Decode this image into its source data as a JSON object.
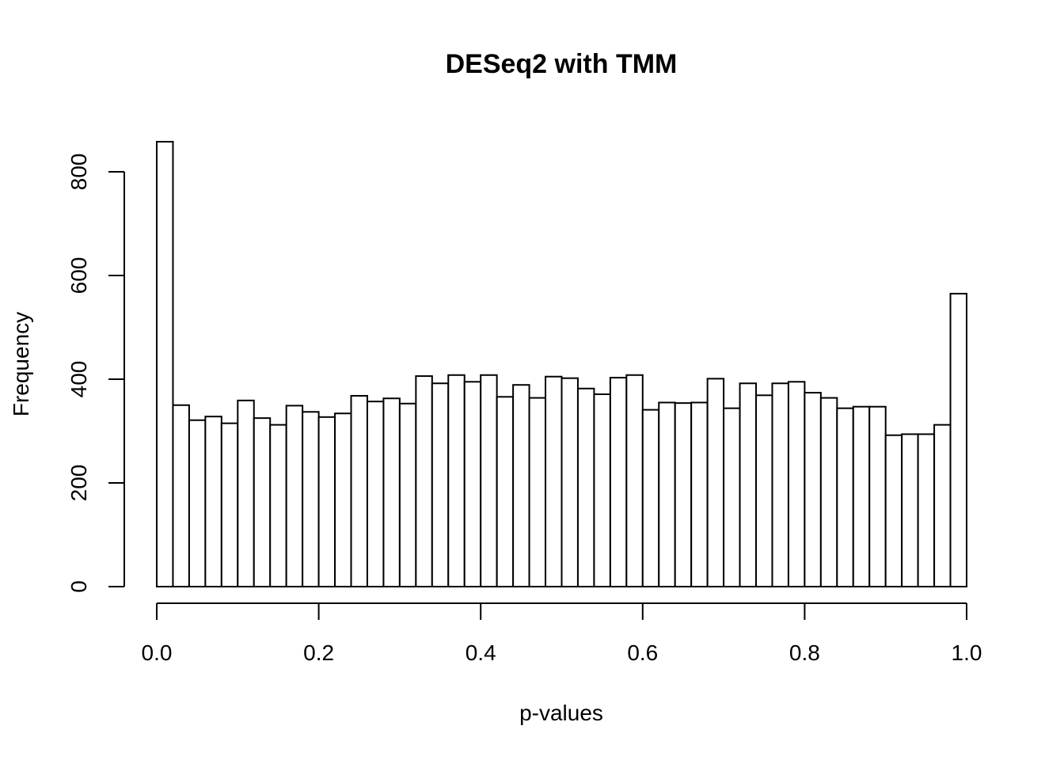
{
  "chart_data": {
    "type": "bar",
    "title": "DESeq2 with TMM",
    "xlabel": "p-values",
    "ylabel": "Frequency",
    "xlim": [
      0.0,
      1.0
    ],
    "ylim": [
      0,
      860
    ],
    "bin_width": 0.02,
    "bin_starts": [
      0.0,
      0.02,
      0.04,
      0.06,
      0.08,
      0.1,
      0.12,
      0.14,
      0.16,
      0.18,
      0.2,
      0.22,
      0.24,
      0.26,
      0.28,
      0.3,
      0.32,
      0.34,
      0.36,
      0.38,
      0.4,
      0.42,
      0.44,
      0.46,
      0.48,
      0.5,
      0.52,
      0.54,
      0.56,
      0.58,
      0.6,
      0.62,
      0.64,
      0.66,
      0.68,
      0.7,
      0.72,
      0.74,
      0.76,
      0.78,
      0.8,
      0.82,
      0.84,
      0.86,
      0.88,
      0.9,
      0.92,
      0.94,
      0.96,
      0.98
    ],
    "values": [
      858,
      350,
      321,
      328,
      315,
      359,
      325,
      312,
      349,
      337,
      327,
      334,
      368,
      357,
      363,
      353,
      406,
      392,
      408,
      395,
      408,
      366,
      389,
      364,
      405,
      402,
      382,
      371,
      403,
      408,
      341,
      355,
      354,
      355,
      401,
      344,
      392,
      369,
      392,
      395,
      374,
      364,
      344,
      347,
      347,
      292,
      294,
      294,
      312,
      565
    ],
    "x_ticks": [
      "0.0",
      "0.2",
      "0.4",
      "0.6",
      "0.8",
      "1.0"
    ],
    "y_ticks": [
      "0",
      "200",
      "400",
      "600",
      "800"
    ],
    "grid": false,
    "legend": "none"
  }
}
